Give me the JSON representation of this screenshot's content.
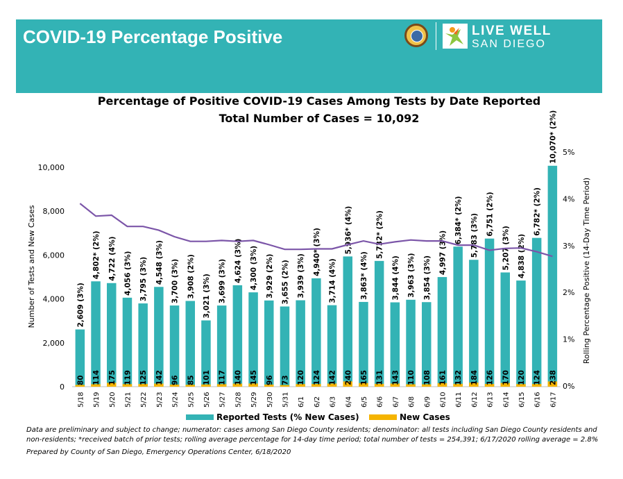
{
  "header": {
    "title": "COVID-19 Percentage Positive",
    "brand_line1": "LIVE WELL",
    "brand_line2": "SAN DIEGO",
    "seal_icon": "county-seal-icon",
    "logo_icon": "live-well-figure-icon",
    "banner_color": "#33b3b5"
  },
  "chart_data": {
    "type": "bar",
    "title": "Percentage of Positive COVID-19 Cases Among Tests by Date Reported",
    "subtitle": "Total Number of Cases = 10,092",
    "categories": [
      "5/18",
      "5/19",
      "5/20",
      "5/21",
      "5/22",
      "5/23",
      "5/24",
      "5/25",
      "5/26",
      "5/27",
      "5/28",
      "5/29",
      "5/30",
      "5/31",
      "6/1",
      "6/2",
      "6/3",
      "6/4",
      "6/5",
      "6/6",
      "6/7",
      "6/8",
      "6/9",
      "6/10",
      "6/11",
      "6/12",
      "6/13",
      "6/14",
      "6/15",
      "6/16",
      "6/17"
    ],
    "ylabel": "Number of Tests and New Cases",
    "y2label": "Rolling Percentage Positive (14-Day Time Period)",
    "ylim": [
      0,
      10000
    ],
    "yticks": [
      "0",
      "2,000",
      "4,000",
      "6,000",
      "8,000",
      "10,000"
    ],
    "y2lim": [
      0,
      5
    ],
    "y2ticks": [
      "0%",
      "1%",
      "2%",
      "3%",
      "4%",
      "5%"
    ],
    "series": [
      {
        "name": "Reported Tests (% New Cases)",
        "color": "#33b3b5",
        "values": [
          2609,
          4802,
          4722,
          4056,
          3795,
          4548,
          3700,
          3908,
          3021,
          3699,
          4624,
          4300,
          3929,
          3655,
          3939,
          4940,
          3714,
          5936,
          3863,
          5732,
          3844,
          3963,
          3854,
          4997,
          6384,
          5783,
          6751,
          5207,
          4838,
          6782,
          10070
        ],
        "labels": [
          "2,609 (3%)",
          "4,802* (2%)",
          "4,722 (4%)",
          "4,056 (3%)",
          "3,795 (3%)",
          "4,548 (3%)",
          "3,700 (3%)",
          "3,908 (2%)",
          "3,021 (3%)",
          "3,699 (3%)",
          "4,624 (3%)",
          "4,300 (3%)",
          "3,929 (2%)",
          "3,655 (2%)",
          "3,939 (3%)",
          "4,940* (3%)",
          "3,714 (4%)",
          "5,936* (4%)",
          "3,863* (4%)",
          "5,732* (2%)",
          "3,844 (4%)",
          "3,963 (3%)",
          "3,854 (3%)",
          "4,997 (3%)",
          "6,384* (2%)",
          "5,783 (3%)",
          "6,751 (2%)",
          "5,207 (3%)",
          "4,838 (2%)",
          "6,782* (2%)",
          "10,070* (2%)"
        ]
      },
      {
        "name": "New Cases",
        "color": "#f5b400",
        "values": [
          80,
          114,
          175,
          119,
          125,
          142,
          96,
          85,
          101,
          117,
          140,
          145,
          96,
          73,
          120,
          124,
          142,
          240,
          165,
          131,
          143,
          110,
          108,
          161,
          132,
          184,
          126,
          170,
          120,
          124,
          238
        ],
        "labels": [
          "80",
          "114",
          "175",
          "119",
          "125",
          "142",
          "96",
          "85",
          "101",
          "117",
          "140",
          "145",
          "96",
          "73",
          "120",
          "124",
          "142",
          "240",
          "165",
          "131",
          "143",
          "110",
          "108",
          "161",
          "132",
          "184",
          "126",
          "170",
          "120",
          "124",
          "238"
        ]
      },
      {
        "name": "Rolling Percentage Positive",
        "type": "line",
        "axis": "right",
        "color": "#7b55a8",
        "values": [
          3.9,
          3.63,
          3.65,
          3.41,
          3.41,
          3.33,
          3.19,
          3.09,
          3.09,
          3.11,
          3.09,
          3.11,
          3.02,
          2.92,
          2.92,
          2.93,
          2.93,
          3.02,
          3.1,
          3.03,
          3.08,
          3.12,
          3.1,
          3.1,
          3.01,
          3.01,
          2.9,
          2.94,
          2.95,
          2.87,
          2.77
        ]
      }
    ],
    "legend": "bottom",
    "grid": false
  },
  "footer": {
    "line1": "Data are preliminary and subject to change; numerator: cases among San Diego County residents; denominator: all tests including San Diego County residents and",
    "line2": "non-residents; *received batch of prior tests; rolling average percentage for 14-day time period; total number of tests = 254,391; 6/17/2020 rolling average = 2.8%",
    "line3": "Prepared by County of San Diego, Emergency Operations Center, 6/18/2020"
  }
}
